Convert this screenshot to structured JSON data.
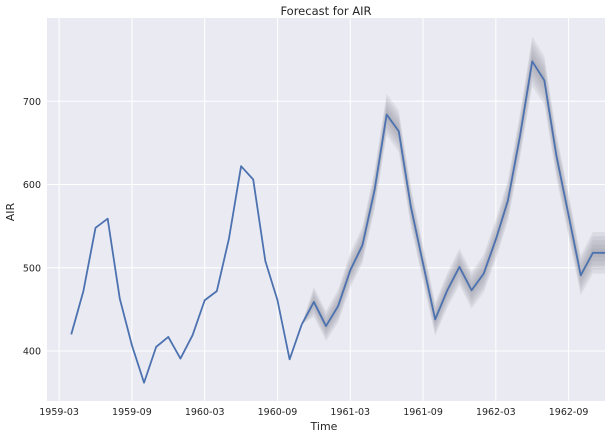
{
  "chart_data": {
    "type": "line",
    "title": "Forecast for AIR",
    "xlabel": "Time",
    "ylabel": "AIR",
    "x_ticks": [
      "1959-03",
      "1959-09",
      "1960-03",
      "1960-09",
      "1961-03",
      "1961-09",
      "1962-03",
      "1962-09"
    ],
    "y_ticks": [
      400,
      500,
      600,
      700
    ],
    "ylim": [
      340,
      800
    ],
    "x_start": "1959-02",
    "x_end": "1962-12",
    "grid": true,
    "colors": {
      "line": "#4c72b0",
      "band": "#8c8c9a",
      "plot_bg": "#eaeaf2",
      "grid": "#ffffff"
    },
    "series": [
      {
        "kind": "history",
        "x": [
          "1959-04",
          "1959-05",
          "1959-06",
          "1959-07",
          "1959-08",
          "1959-09",
          "1959-10",
          "1959-11",
          "1959-12",
          "1960-01",
          "1960-02",
          "1960-03",
          "1960-04",
          "1960-05",
          "1960-06",
          "1960-07",
          "1960-08",
          "1960-09",
          "1960-10",
          "1960-11"
        ],
        "values": [
          420,
          472,
          548,
          559,
          463,
          407,
          362,
          405,
          417,
          391,
          419,
          461,
          472,
          535,
          622,
          606,
          508,
          461,
          390,
          432
        ]
      },
      {
        "kind": "forecast",
        "x": [
          "1960-11",
          "1960-12",
          "1961-01",
          "1961-02",
          "1961-03",
          "1961-04",
          "1961-05",
          "1961-06",
          "1961-07",
          "1961-08",
          "1961-09",
          "1961-10",
          "1961-11",
          "1961-12",
          "1962-01",
          "1962-02",
          "1962-03",
          "1962-04",
          "1962-05",
          "1962-06",
          "1962-07",
          "1962-08",
          "1962-09",
          "1962-10",
          "1962-11",
          "1962-12"
        ],
        "values": [
          432,
          459,
          430,
          454,
          497,
          527,
          593,
          684,
          664,
          573,
          505,
          438,
          473,
          501,
          473,
          493,
          534,
          581,
          659,
          748,
          725,
          634,
          563,
          491,
          518,
          518
        ],
        "band_half_width": [
          0,
          18,
          18,
          20,
          21,
          22,
          24,
          25,
          25,
          24,
          22,
          20,
          21,
          22,
          22,
          23,
          24,
          25,
          27,
          30,
          29,
          27,
          26,
          24,
          25,
          25
        ]
      }
    ]
  }
}
